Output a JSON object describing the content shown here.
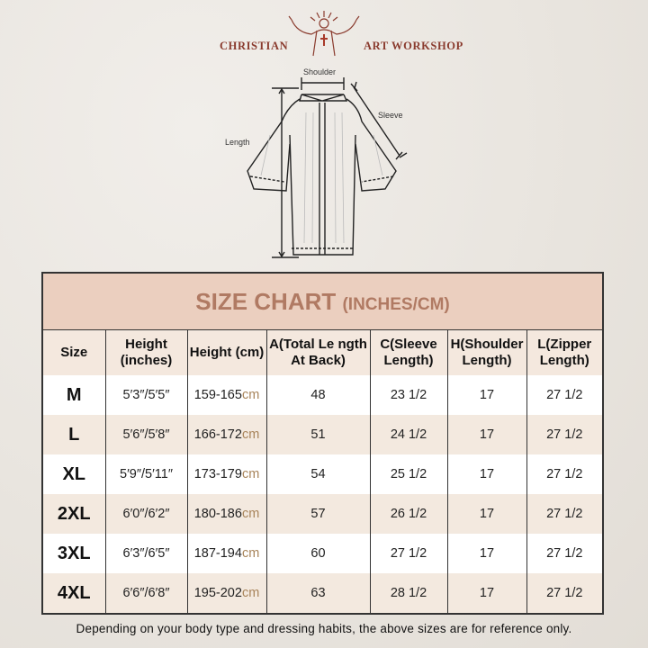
{
  "brand": {
    "left": "CHRISTIAN",
    "right": "ART WORKSHOP",
    "color": "#8a3b2e"
  },
  "diagram": {
    "shoulder": "Shoulder",
    "sleeve": "Sleeve",
    "length": "Length"
  },
  "chart": {
    "title": "SIZE CHART",
    "units": "(INCHES/CM)",
    "headers": [
      "Size",
      "Height (inches)",
      "Height (cm)",
      "A(Total Le ngth At Back)",
      "C(Sleeve Length)",
      "H(Shoulder Length)",
      "L(Zipper Length)"
    ],
    "rows": [
      {
        "size": "M",
        "h_in": "5′3″/5′5″",
        "h_cm": "159-165",
        "cm": "cm",
        "a": "48",
        "c": "23 1/2",
        "h": "17",
        "l": "27 1/2"
      },
      {
        "size": "L",
        "h_in": "5′6″/5′8″",
        "h_cm": "166-172",
        "cm": "cm",
        "a": "51",
        "c": "24 1/2",
        "h": "17",
        "l": "27 1/2"
      },
      {
        "size": "XL",
        "h_in": "5′9″/5′11″",
        "h_cm": "173-179",
        "cm": "cm",
        "a": "54",
        "c": "25 1/2",
        "h": "17",
        "l": "27 1/2"
      },
      {
        "size": "2XL",
        "h_in": "6′0″/6′2″",
        "h_cm": "180-186",
        "cm": "cm",
        "a": "57",
        "c": "26 1/2",
        "h": "17",
        "l": "27 1/2"
      },
      {
        "size": "3XL",
        "h_in": "6′3″/6′5″",
        "h_cm": "187-194",
        "cm": "cm",
        "a": "60",
        "c": "27 1/2",
        "h": "17",
        "l": "27 1/2"
      },
      {
        "size": "4XL",
        "h_in": "6′6″/6′8″",
        "h_cm": "195-202",
        "cm": "cm",
        "a": "63",
        "c": "28 1/2",
        "h": "17",
        "l": "27 1/2"
      }
    ]
  },
  "note": "Depending on your body type and dressing habits, the above sizes are for reference only."
}
